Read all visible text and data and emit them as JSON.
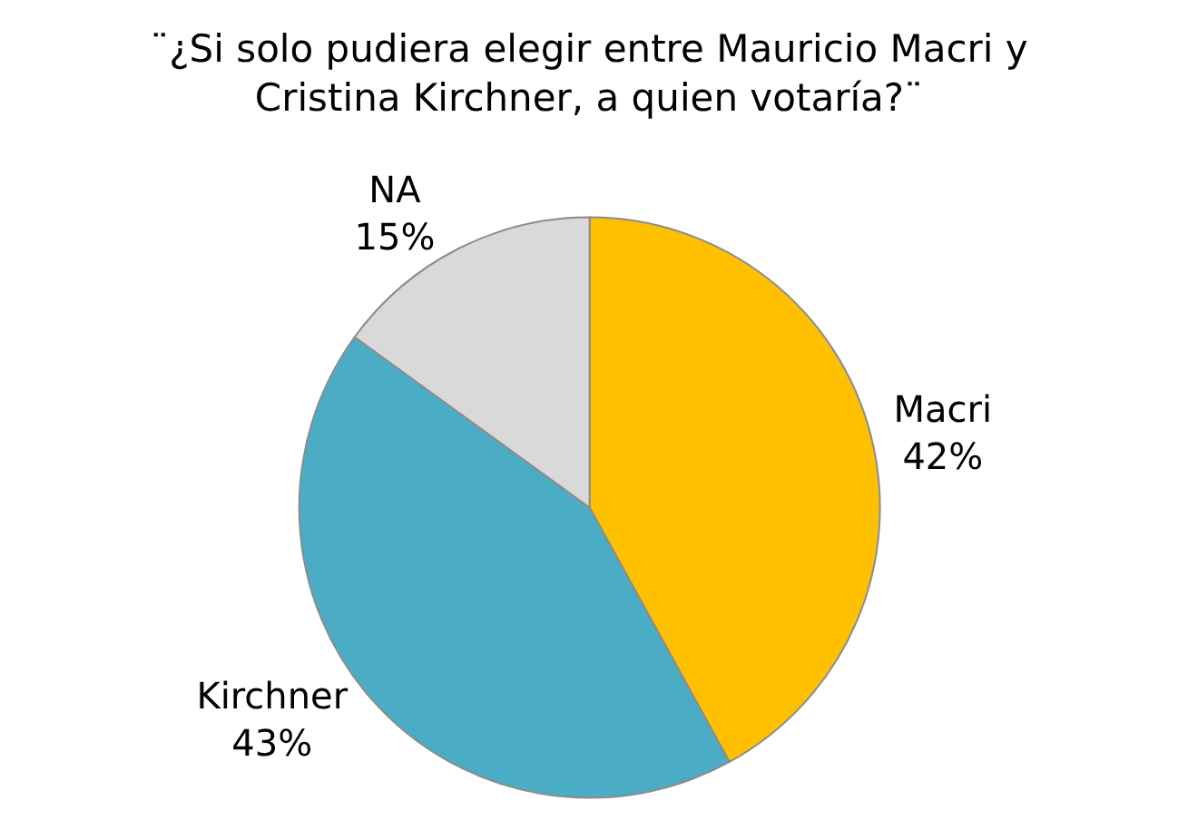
{
  "chart_data": {
    "type": "pie",
    "title": "¨¿Si solo pudiera elegir entre Mauricio Macri y\nCristina Kirchner, a quien votaría?¨",
    "categories": [
      "Macri",
      "Kirchner",
      "NA"
    ],
    "values": [
      42,
      43,
      15
    ],
    "value_labels": [
      "42%",
      "43%",
      "15%"
    ],
    "colors": [
      "#ffc000",
      "#4bacc6",
      "#d9d9d9"
    ],
    "legend": false
  }
}
